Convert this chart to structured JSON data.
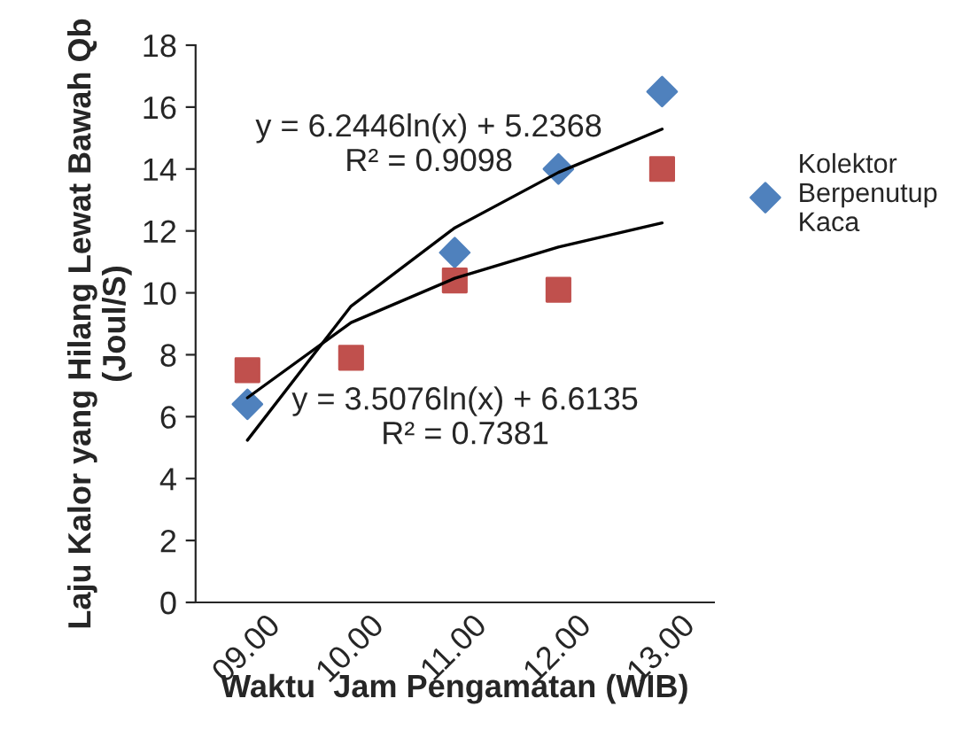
{
  "chart_data": {
    "type": "scatter",
    "xlabel": "Waktu  Jam Pengamatan (WIB)",
    "ylabel": "Laju Kalor yang Hilang Lewat Bawah Qb (Joul/S)",
    "categories": [
      "09.00",
      "10.00",
      "11.00",
      "12.00",
      "13.00"
    ],
    "ylim": [
      0,
      18
    ],
    "yticks": [
      0,
      2,
      4,
      6,
      8,
      10,
      12,
      14,
      16,
      18
    ],
    "series": [
      {
        "name": "Kolektor Berpenutup Kaca",
        "color": "#4f81bd",
        "marker": "diamond",
        "values": [
          6.4,
          null,
          11.3,
          14.0,
          16.5
        ]
      },
      {
        "color": "#c0504d",
        "marker": "square",
        "values": [
          7.5,
          7.9,
          10.4,
          10.1,
          14.0
        ]
      },
      {
        "type": "line",
        "color": "#000000",
        "marker": "none",
        "values": [
          5.24,
          9.57,
          12.1,
          13.89,
          15.29
        ]
      },
      {
        "type": "line",
        "color": "#000000",
        "marker": "none",
        "values": [
          6.61,
          9.04,
          10.47,
          11.48,
          12.26
        ]
      }
    ],
    "annotations": [
      "y = 6.2446ln(x) + 5.2368\nR² = 0.9098",
      "y = 3.5076ln(x) + 6.6135\nR² = 0.7381"
    ],
    "grid": false,
    "legend": "right"
  }
}
